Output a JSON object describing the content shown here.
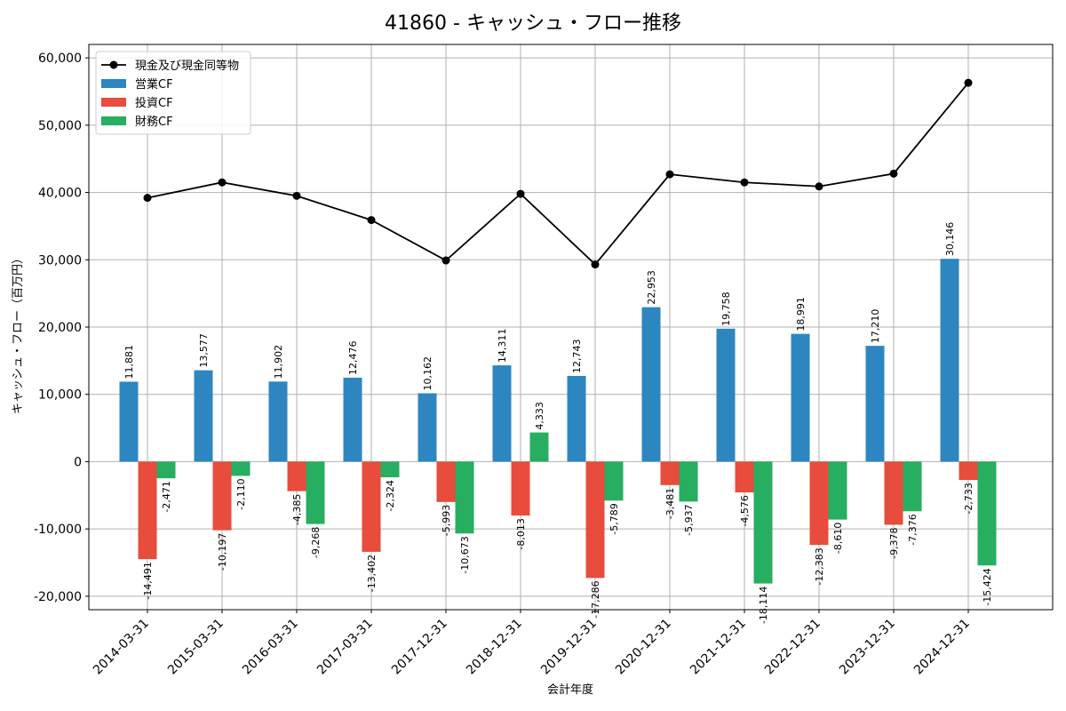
{
  "chart_data": {
    "type": "bar",
    "title": "41860 - キャッシュ・フロー推移",
    "xlabel": "会計年度",
    "ylabel": "キャッシュ・フロー（百万円）",
    "ylim": [
      -22000,
      62000
    ],
    "yticks": [
      -20000,
      -10000,
      0,
      10000,
      20000,
      30000,
      40000,
      50000,
      60000
    ],
    "ytick_labels": [
      "-20,000",
      "-10,000",
      "0",
      "10,000",
      "20,000",
      "30,000",
      "40,000",
      "50,000",
      "60,000"
    ],
    "grid": true,
    "legend_position": "top-left",
    "categories": [
      "2014-03-31",
      "2015-03-31",
      "2016-03-31",
      "2017-03-31",
      "2017-12-31",
      "2018-12-31",
      "2019-12-31",
      "2020-12-31",
      "2021-12-31",
      "2022-12-31",
      "2023-12-31",
      "2024-12-31"
    ],
    "series": [
      {
        "name": "営業CF",
        "kind": "bar",
        "color": "#2e86c1",
        "values": [
          11881,
          13577,
          11902,
          12476,
          10162,
          14311,
          12743,
          22953,
          19758,
          18991,
          17210,
          30146
        ],
        "labels": [
          "11,881",
          "13,577",
          "11,902",
          "12,476",
          "10,162",
          "14,311",
          "12,743",
          "22,953",
          "19,758",
          "18,991",
          "17,210",
          "30,146"
        ]
      },
      {
        "name": "投資CF",
        "kind": "bar",
        "color": "#e74c3c",
        "values": [
          -14491,
          -10197,
          -4385,
          -13402,
          -5993,
          -8013,
          -17286,
          -3481,
          -4576,
          -12383,
          -9378,
          -2733
        ],
        "labels": [
          "-14,491",
          "-10,197",
          "-4,385",
          "-13,402",
          "-5,993",
          "-8,013",
          "-17,286",
          "-3,481",
          "-4,576",
          "-12,383",
          "-9,378",
          "-2,733"
        ]
      },
      {
        "name": "財務CF",
        "kind": "bar",
        "color": "#27ae60",
        "values": [
          -2471,
          -2110,
          -9268,
          -2324,
          -10673,
          4333,
          -5789,
          -5937,
          -18114,
          -8610,
          -7376,
          -15424
        ],
        "labels": [
          "-2,471",
          "-2,110",
          "-9,268",
          "-2,324",
          "-10,673",
          "4,333",
          "-5,789",
          "-5,937",
          "-18,114",
          "-8,610",
          "-7,376",
          "-15,424"
        ]
      },
      {
        "name": "現金及び現金同等物",
        "kind": "line",
        "color": "#000000",
        "values": [
          39200,
          41500,
          39500,
          35900,
          29900,
          39800,
          29300,
          42700,
          41500,
          40900,
          42800,
          56300
        ]
      }
    ],
    "legend": [
      "現金及び現金同等物",
      "営業CF",
      "投資CF",
      "財務CF"
    ]
  }
}
